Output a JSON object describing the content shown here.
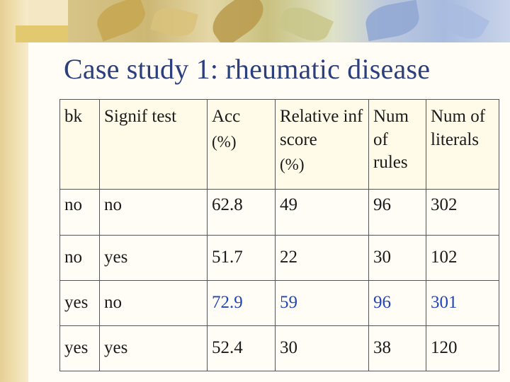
{
  "title": "Case study 1: rheumatic disease",
  "accent_color": "#2b3f7e",
  "highlight_color": "#2244bb",
  "table": {
    "headers": [
      {
        "line1": "bk",
        "line2": ""
      },
      {
        "line1": "Signif test",
        "line2": ""
      },
      {
        "line1": "Acc",
        "line2": "(%)"
      },
      {
        "line1": "Relative inf score",
        "line2": "(%)"
      },
      {
        "line1": "Num of rules",
        "line2": ""
      },
      {
        "line1": "Num of literals",
        "line2": ""
      }
    ],
    "rows": [
      {
        "cells": [
          "no",
          "no",
          "62.8",
          "49",
          "96",
          "302"
        ],
        "highlight": false
      },
      {
        "cells": [
          "no",
          "yes",
          "51.7",
          "22",
          "30",
          "102"
        ],
        "highlight": false
      },
      {
        "cells": [
          "yes",
          "no",
          "72.9",
          "59",
          "96",
          "301"
        ],
        "highlight": true
      },
      {
        "cells": [
          "yes",
          "yes",
          "52.4",
          "30",
          "38",
          "120"
        ],
        "highlight": false
      }
    ]
  }
}
